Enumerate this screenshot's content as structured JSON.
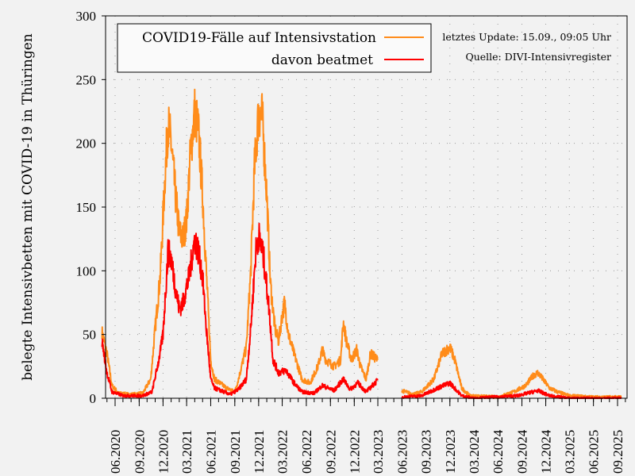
{
  "chart_data": {
    "type": "line",
    "title": "",
    "xlabel": "",
    "ylabel": "belegte Intensivbetten mit COVID-19 in Thüringen",
    "ylim": [
      0,
      300
    ],
    "yticks": [
      "0",
      "50",
      "100",
      "150",
      "200",
      "250",
      "300"
    ],
    "xlim": [
      "2020-04-10",
      "2025-09-20"
    ],
    "xticks": [
      "06.2020",
      "09.2020",
      "12.2020",
      "03.2021",
      "06.2021",
      "09.2021",
      "12.2021",
      "03.2022",
      "06.2022",
      "09.2022",
      "12.2022",
      "03.2023",
      "06.2023",
      "09.2023",
      "12.2023",
      "03.2024",
      "06.2024",
      "09.2024",
      "12.2024",
      "03.2025",
      "06.2025",
      "09.2025"
    ],
    "grid": true,
    "legend_position": "top-left",
    "annotations": [
      "letztes Update: 15.09., 09:05 Uhr",
      "Quelle: DIVI-Intensivregister"
    ],
    "series": [
      {
        "name": "COVID19-Fälle auf Intensivstation",
        "color": "#ff8c1a",
        "points": [
          [
            "2020-04-12",
            52
          ],
          [
            "2020-05-01",
            35
          ],
          [
            "2020-05-20",
            10
          ],
          [
            "2020-06-15",
            4
          ],
          [
            "2020-08-01",
            3
          ],
          [
            "2020-09-15",
            4
          ],
          [
            "2020-10-15",
            15
          ],
          [
            "2020-11-01",
            55
          ],
          [
            "2020-11-20",
            95
          ],
          [
            "2020-12-10",
            180
          ],
          [
            "2020-12-20",
            215
          ],
          [
            "2021-01-01",
            200
          ],
          [
            "2021-01-15",
            165
          ],
          [
            "2021-02-01",
            130
          ],
          [
            "2021-02-15",
            125
          ],
          [
            "2021-03-01",
            140
          ],
          [
            "2021-03-15",
            190
          ],
          [
            "2021-04-01",
            225
          ],
          [
            "2021-04-15",
            210
          ],
          [
            "2021-05-01",
            160
          ],
          [
            "2021-05-15",
            100
          ],
          [
            "2021-06-01",
            30
          ],
          [
            "2021-06-15",
            15
          ],
          [
            "2021-08-01",
            8
          ],
          [
            "2021-09-01",
            5
          ],
          [
            "2021-09-15",
            15
          ],
          [
            "2021-10-15",
            40
          ],
          [
            "2021-11-01",
            100
          ],
          [
            "2021-11-15",
            180
          ],
          [
            "2021-12-01",
            225
          ],
          [
            "2021-12-15",
            220
          ],
          [
            "2022-01-01",
            160
          ],
          [
            "2022-01-15",
            90
          ],
          [
            "2022-02-01",
            55
          ],
          [
            "2022-02-15",
            45
          ],
          [
            "2022-03-01",
            65
          ],
          [
            "2022-03-10",
            75
          ],
          [
            "2022-03-25",
            50
          ],
          [
            "2022-04-15",
            35
          ],
          [
            "2022-05-15",
            15
          ],
          [
            "2022-06-15",
            12
          ],
          [
            "2022-07-15",
            25
          ],
          [
            "2022-08-01",
            38
          ],
          [
            "2022-08-15",
            30
          ],
          [
            "2022-09-15",
            25
          ],
          [
            "2022-10-10",
            30
          ],
          [
            "2022-10-20",
            60
          ],
          [
            "2022-11-01",
            45
          ],
          [
            "2022-11-20",
            30
          ],
          [
            "2022-12-10",
            38
          ],
          [
            "2022-12-25",
            25
          ],
          [
            "2023-01-15",
            15
          ],
          [
            "2023-02-01",
            35
          ],
          [
            "2023-02-28",
            30
          ],
          null,
          [
            "2023-06-01",
            6
          ],
          [
            "2023-07-15",
            3
          ],
          [
            "2023-08-15",
            5
          ],
          [
            "2023-10-01",
            15
          ],
          [
            "2023-11-01",
            35
          ],
          [
            "2023-12-01",
            40
          ],
          [
            "2023-12-20",
            30
          ],
          [
            "2024-01-15",
            8
          ],
          [
            "2024-02-15",
            2
          ],
          [
            "2024-06-01",
            1
          ],
          [
            "2024-08-01",
            5
          ],
          [
            "2024-09-15",
            10
          ],
          [
            "2024-10-15",
            18
          ],
          [
            "2024-11-01",
            20
          ],
          [
            "2024-11-20",
            15
          ],
          [
            "2024-12-15",
            8
          ],
          [
            "2025-01-15",
            5
          ],
          [
            "2025-03-01",
            2
          ],
          [
            "2025-06-01",
            1
          ],
          [
            "2025-09-15",
            1
          ]
        ]
      },
      {
        "name": "davon beatmet",
        "color": "#ff0000",
        "points": [
          [
            "2020-04-12",
            45
          ],
          [
            "2020-05-01",
            20
          ],
          [
            "2020-05-20",
            5
          ],
          [
            "2020-07-01",
            2
          ],
          [
            "2020-09-15",
            2
          ],
          [
            "2020-10-20",
            5
          ],
          [
            "2020-11-15",
            30
          ],
          [
            "2020-12-01",
            50
          ],
          [
            "2020-12-20",
            115
          ],
          [
            "2021-01-01",
            110
          ],
          [
            "2021-01-15",
            90
          ],
          [
            "2021-02-01",
            70
          ],
          [
            "2021-02-15",
            75
          ],
          [
            "2021-03-10",
            95
          ],
          [
            "2021-04-01",
            125
          ],
          [
            "2021-04-15",
            115
          ],
          [
            "2021-05-01",
            95
          ],
          [
            "2021-05-15",
            55
          ],
          [
            "2021-06-01",
            15
          ],
          [
            "2021-06-15",
            8
          ],
          [
            "2021-08-15",
            3
          ],
          [
            "2021-09-15",
            7
          ],
          [
            "2021-10-15",
            15
          ],
          [
            "2021-11-01",
            55
          ],
          [
            "2021-11-20",
            115
          ],
          [
            "2021-12-01",
            128
          ],
          [
            "2021-12-20",
            110
          ],
          [
            "2022-01-10",
            70
          ],
          [
            "2022-01-25",
            30
          ],
          [
            "2022-02-15",
            20
          ],
          [
            "2022-03-15",
            22
          ],
          [
            "2022-04-15",
            12
          ],
          [
            "2022-05-15",
            5
          ],
          [
            "2022-07-01",
            4
          ],
          [
            "2022-08-01",
            10
          ],
          [
            "2022-09-15",
            6
          ],
          [
            "2022-10-20",
            15
          ],
          [
            "2022-11-15",
            7
          ],
          [
            "2022-12-15",
            12
          ],
          [
            "2023-01-15",
            5
          ],
          [
            "2023-02-28",
            14
          ],
          null,
          [
            "2023-06-01",
            1
          ],
          [
            "2023-08-15",
            2
          ],
          [
            "2023-10-15",
            8
          ],
          [
            "2023-12-01",
            12
          ],
          [
            "2024-01-15",
            2
          ],
          [
            "2024-03-01",
            0
          ],
          [
            "2024-08-15",
            2
          ],
          [
            "2024-11-01",
            6
          ],
          [
            "2024-12-15",
            2
          ],
          [
            "2025-03-01",
            0
          ],
          [
            "2025-09-15",
            0
          ]
        ]
      }
    ]
  }
}
